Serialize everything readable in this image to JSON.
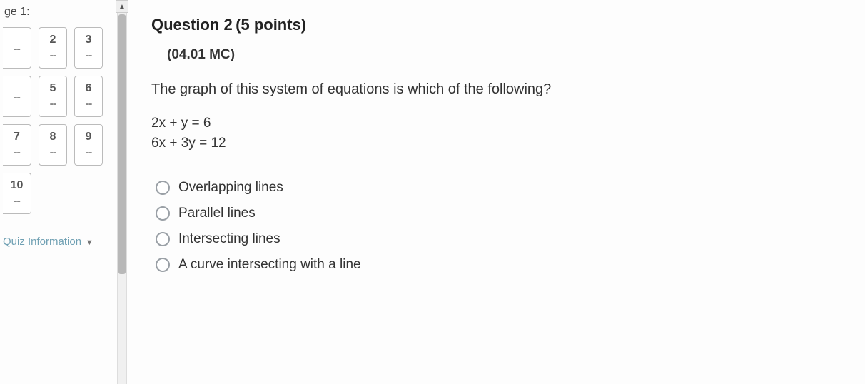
{
  "sidebar": {
    "page_label": "ge 1:",
    "nav": [
      {
        "num": "",
        "cut": true
      },
      {
        "num": "2"
      },
      {
        "num": "3"
      },
      {
        "num": "",
        "cut": true
      },
      {
        "num": "5"
      },
      {
        "num": "6"
      },
      {
        "num": "7",
        "cut": true
      },
      {
        "num": "8"
      },
      {
        "num": "9"
      },
      {
        "num": "10",
        "cut": true
      }
    ],
    "quiz_info": "Quiz Information"
  },
  "question": {
    "title": "Question 2",
    "points": "(5 points)",
    "code": "(04.01 MC)",
    "prompt": "The graph of this system of equations is which of the following?",
    "equations": [
      "2x + y = 6",
      "6x + 3y = 12"
    ],
    "options": [
      "Overlapping lines",
      "Parallel lines",
      "Intersecting lines",
      "A curve intersecting with a line"
    ]
  },
  "colors": {
    "text": "#333333",
    "border": "#bbbbbb",
    "radio_border": "#9aa0a6",
    "link": "#6fa0b3",
    "background": "#fdfdfd"
  }
}
